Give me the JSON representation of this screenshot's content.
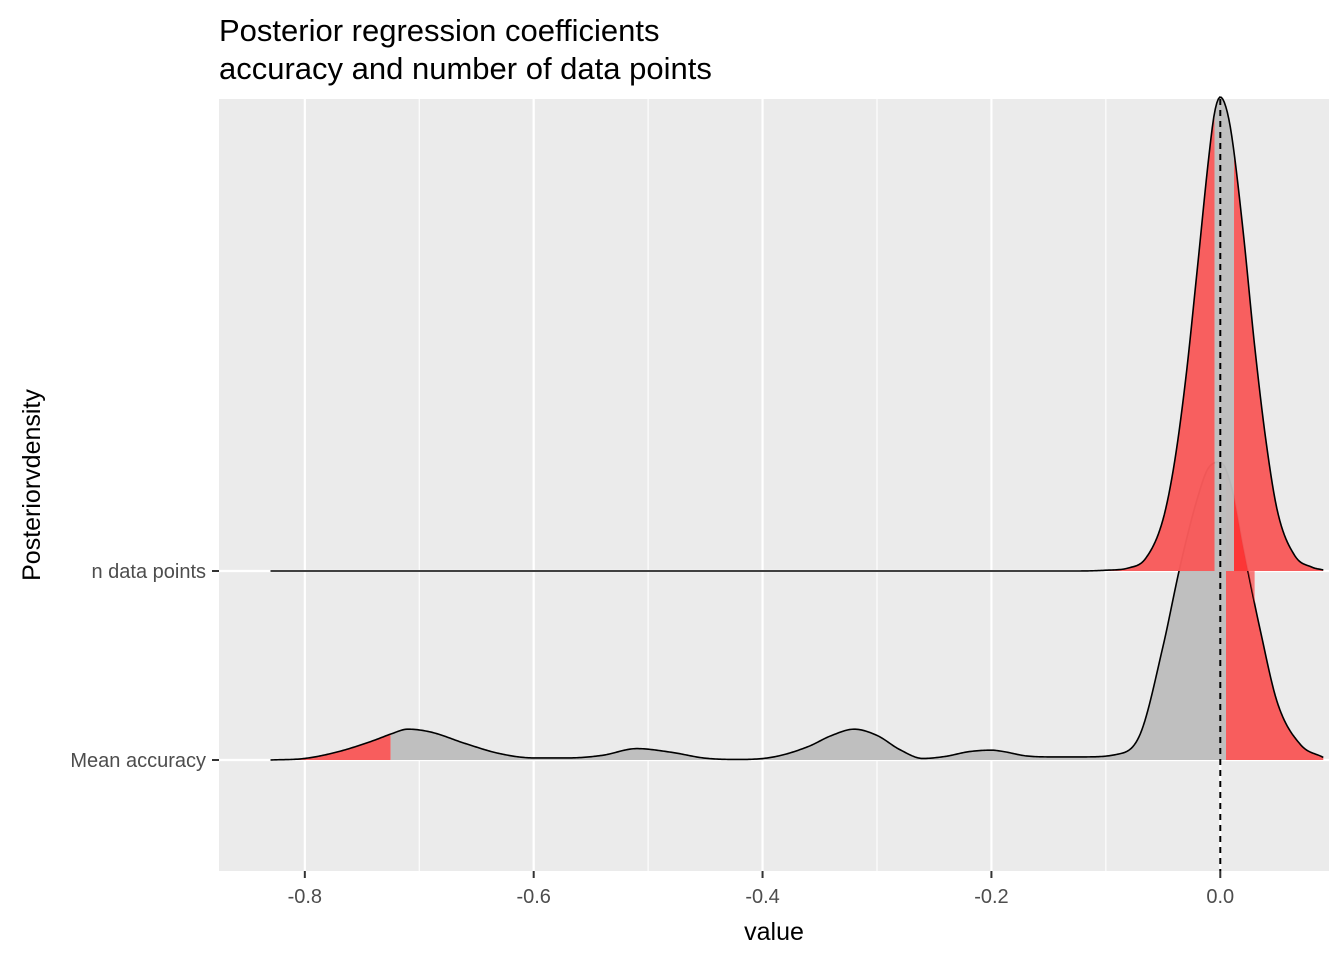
{
  "chart_data": {
    "type": "area",
    "title_lines": [
      "Posterior regression coefficients",
      "accuracy and number of data points"
    ],
    "xlabel": "value",
    "ylabel": "Posteriorvdensity",
    "categories": [
      "Mean accuracy",
      "n data points"
    ],
    "x_ticks": [
      -0.8,
      -0.6,
      -0.4,
      -0.2,
      0.0
    ],
    "x_tick_labels": [
      "-0.8",
      "-0.6",
      "-0.4",
      "-0.2",
      "0.0"
    ],
    "x_minor_ticks": [
      -0.9,
      -0.7,
      -0.5,
      -0.3,
      -0.1,
      0.1
    ],
    "xlim": [
      -0.875,
      0.095
    ],
    "reference_line": {
      "x": 0.0,
      "style": "dashed"
    },
    "grid": true,
    "colors": {
      "panel": "#ebebeb",
      "grid": "#ffffff",
      "tail_fill": "#f85a5a",
      "central_fill": "#bebebe",
      "outline": "#000000",
      "overlap_red": "#ff1a1a"
    },
    "series": [
      {
        "name": "Mean accuracy",
        "x": [
          -0.83,
          -0.8,
          -0.77,
          -0.74,
          -0.725,
          -0.71,
          -0.69,
          -0.66,
          -0.63,
          -0.6,
          -0.57,
          -0.54,
          -0.51,
          -0.48,
          -0.45,
          -0.42,
          -0.39,
          -0.36,
          -0.34,
          -0.32,
          -0.3,
          -0.28,
          -0.26,
          -0.24,
          -0.22,
          -0.2,
          -0.19,
          -0.17,
          -0.15,
          -0.12,
          -0.09,
          -0.07,
          -0.05,
          -0.035,
          -0.02,
          -0.01,
          0.0,
          0.01,
          0.02,
          0.035,
          0.05,
          0.07,
          0.09
        ],
        "y": [
          0.0,
          0.006,
          0.033,
          0.075,
          0.1,
          0.119,
          0.108,
          0.064,
          0.025,
          0.008,
          0.008,
          0.018,
          0.044,
          0.03,
          0.007,
          0.002,
          0.012,
          0.052,
          0.094,
          0.119,
          0.095,
          0.04,
          0.006,
          0.014,
          0.032,
          0.038,
          0.033,
          0.016,
          0.012,
          0.012,
          0.022,
          0.1,
          0.44,
          0.75,
          1.01,
          1.13,
          1.15,
          1.05,
          0.82,
          0.5,
          0.22,
          0.06,
          0.01
        ],
        "central_interval": [
          -0.725,
          0.005
        ]
      },
      {
        "name": "n data points",
        "x": [
          -0.83,
          -0.125,
          -0.1,
          -0.08,
          -0.065,
          -0.05,
          -0.04,
          -0.03,
          -0.02,
          -0.01,
          -0.005,
          0.0,
          0.005,
          0.01,
          0.02,
          0.03,
          0.04,
          0.05,
          0.065,
          0.08,
          0.09
        ],
        "y": [
          0.0,
          0.0,
          0.003,
          0.012,
          0.05,
          0.2,
          0.42,
          0.75,
          1.17,
          1.6,
          1.77,
          1.83,
          1.79,
          1.68,
          1.31,
          0.87,
          0.5,
          0.23,
          0.06,
          0.015,
          0.004
        ],
        "central_interval": [
          -0.005,
          0.012
        ]
      }
    ]
  }
}
